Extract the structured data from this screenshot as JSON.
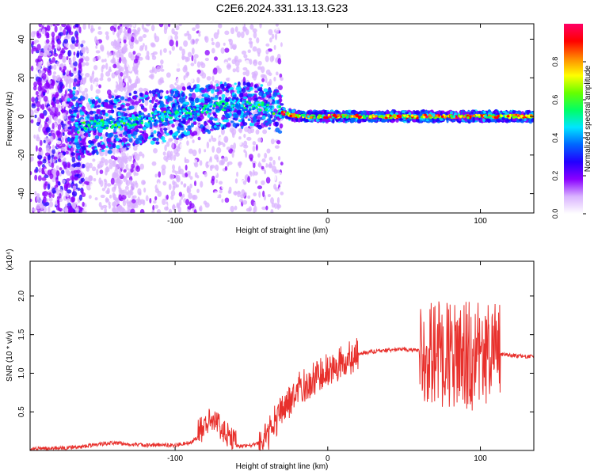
{
  "title": "C2E6.2024.331.13.13.G23",
  "chart_data": [
    {
      "type": "heatmap",
      "xlabel": "Height of straight line (km)",
      "ylabel": "Frequency (Hz)",
      "xlim": [
        -195,
        135
      ],
      "ylim": [
        -50,
        48
      ],
      "xticks": [
        -100,
        0,
        100
      ],
      "yticks": [
        -40,
        -20,
        0,
        20,
        40
      ],
      "colorbar": {
        "label": "Normalized spectral amplitude",
        "range": [
          0,
          1
        ],
        "ticks": [
          "0.0",
          "0.2",
          "0.4",
          "0.6",
          "0.8"
        ],
        "colors": [
          "#ffffff",
          "#d9b3ff",
          "#8a00ff",
          "#2200ff",
          "#0066ff",
          "#00e5ff",
          "#00ff66",
          "#66ff00",
          "#ffff00",
          "#ff8800",
          "#ff0000",
          "#ff0066"
        ]
      },
      "ridge_points": [
        {
          "x": -165,
          "y": -6
        },
        {
          "x": -150,
          "y": -4
        },
        {
          "x": -135,
          "y": -3
        },
        {
          "x": -120,
          "y": -1
        },
        {
          "x": -100,
          "y": 1
        },
        {
          "x": -80,
          "y": 4
        },
        {
          "x": -60,
          "y": 6
        },
        {
          "x": -40,
          "y": 5
        },
        {
          "x": -30,
          "y": 2
        },
        {
          "x": -20,
          "y": 0
        },
        {
          "x": 0,
          "y": 0
        },
        {
          "x": 50,
          "y": 0
        },
        {
          "x": 100,
          "y": 0
        },
        {
          "x": 135,
          "y": 0
        }
      ]
    },
    {
      "type": "line",
      "xlabel": "Height of straight line (km)",
      "ylabel": "SNR (10 * v/v)",
      "scale_label": "(x10⁴)",
      "xlim": [
        -195,
        135
      ],
      "ylim": [
        0,
        2.45
      ],
      "xticks": [
        -100,
        0,
        100
      ],
      "yticks": [
        "0.5",
        "1.0",
        "1.5",
        "2.0"
      ],
      "series_color": "#e8302c",
      "series": [
        {
          "x": [
            -195,
            -175,
            -160,
            -150,
            -140,
            -130,
            -120,
            -100,
            -90,
            -80,
            -76,
            -70,
            -60,
            -50,
            -40,
            -35,
            -30,
            -25,
            -20,
            -15,
            -10,
            -5,
            0,
            5,
            10,
            15,
            20,
            30,
            40,
            50,
            55,
            60,
            62,
            65,
            70,
            75,
            80,
            85,
            90,
            95,
            100,
            105,
            110,
            113,
            120,
            130,
            135
          ],
          "y": [
            0.02,
            0.03,
            0.05,
            0.08,
            0.1,
            0.08,
            0.07,
            0.07,
            0.1,
            0.25,
            0.35,
            0.2,
            0.06,
            0.06,
            0.15,
            0.35,
            0.5,
            0.65,
            0.78,
            0.85,
            0.92,
            0.98,
            1.05,
            1.1,
            1.15,
            1.2,
            1.25,
            1.28,
            1.3,
            1.31,
            1.3,
            1.3,
            1.2,
            1.25,
            1.3,
            1.25,
            1.2,
            1.3,
            1.25,
            1.2,
            1.25,
            1.3,
            1.2,
            1.25,
            1.23,
            1.22,
            1.22
          ]
        }
      ]
    }
  ]
}
